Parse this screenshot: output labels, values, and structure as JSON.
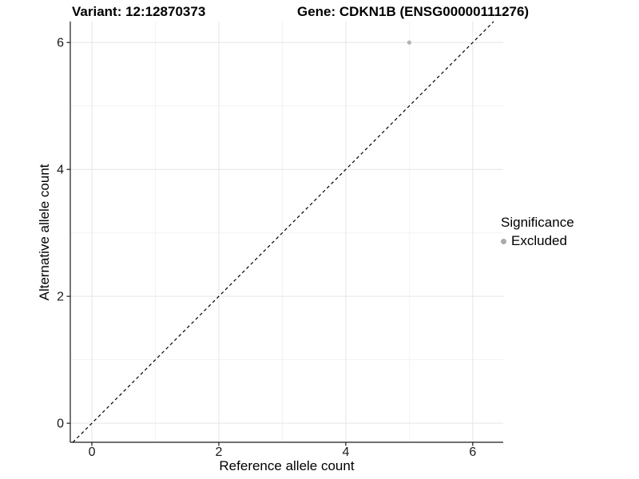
{
  "chart_data": {
    "type": "scatter",
    "titles": {
      "left": "Variant: 12:12870373",
      "right": "Gene: CDKN1B (ENSG00000111276)"
    },
    "xlabel": "Reference allele count",
    "ylabel": "Alternative allele count",
    "xlim": [
      -0.34,
      6.48
    ],
    "ylim": [
      -0.3,
      6.33
    ],
    "xticks": [
      0,
      2,
      4,
      6
    ],
    "yticks": [
      0,
      2,
      4,
      6
    ],
    "xminor": [
      1,
      3,
      5
    ],
    "yminor": [
      1,
      3,
      5
    ],
    "grid": "major+minor",
    "identity_line": {
      "slope": 1,
      "intercept": 0,
      "style": "dashed",
      "color": "#000000"
    },
    "series": [
      {
        "name": "Excluded",
        "color": "#b3b3b3",
        "marker": "circle",
        "size": 2.6,
        "points": [
          {
            "x": 5,
            "y": 6
          }
        ]
      }
    ],
    "legend": {
      "title": "Significance",
      "position": "right",
      "items": [
        {
          "label": "Excluded",
          "color": "#aaaaaa"
        }
      ]
    },
    "colors": {
      "background": "#ffffff",
      "grid_major": "#e5e5e5",
      "grid_minor": "#f2f2f2",
      "axis_line": "#1a1a1a",
      "tick_mark": "#1a1a1a",
      "tick_label": "#1a1a1a"
    }
  }
}
